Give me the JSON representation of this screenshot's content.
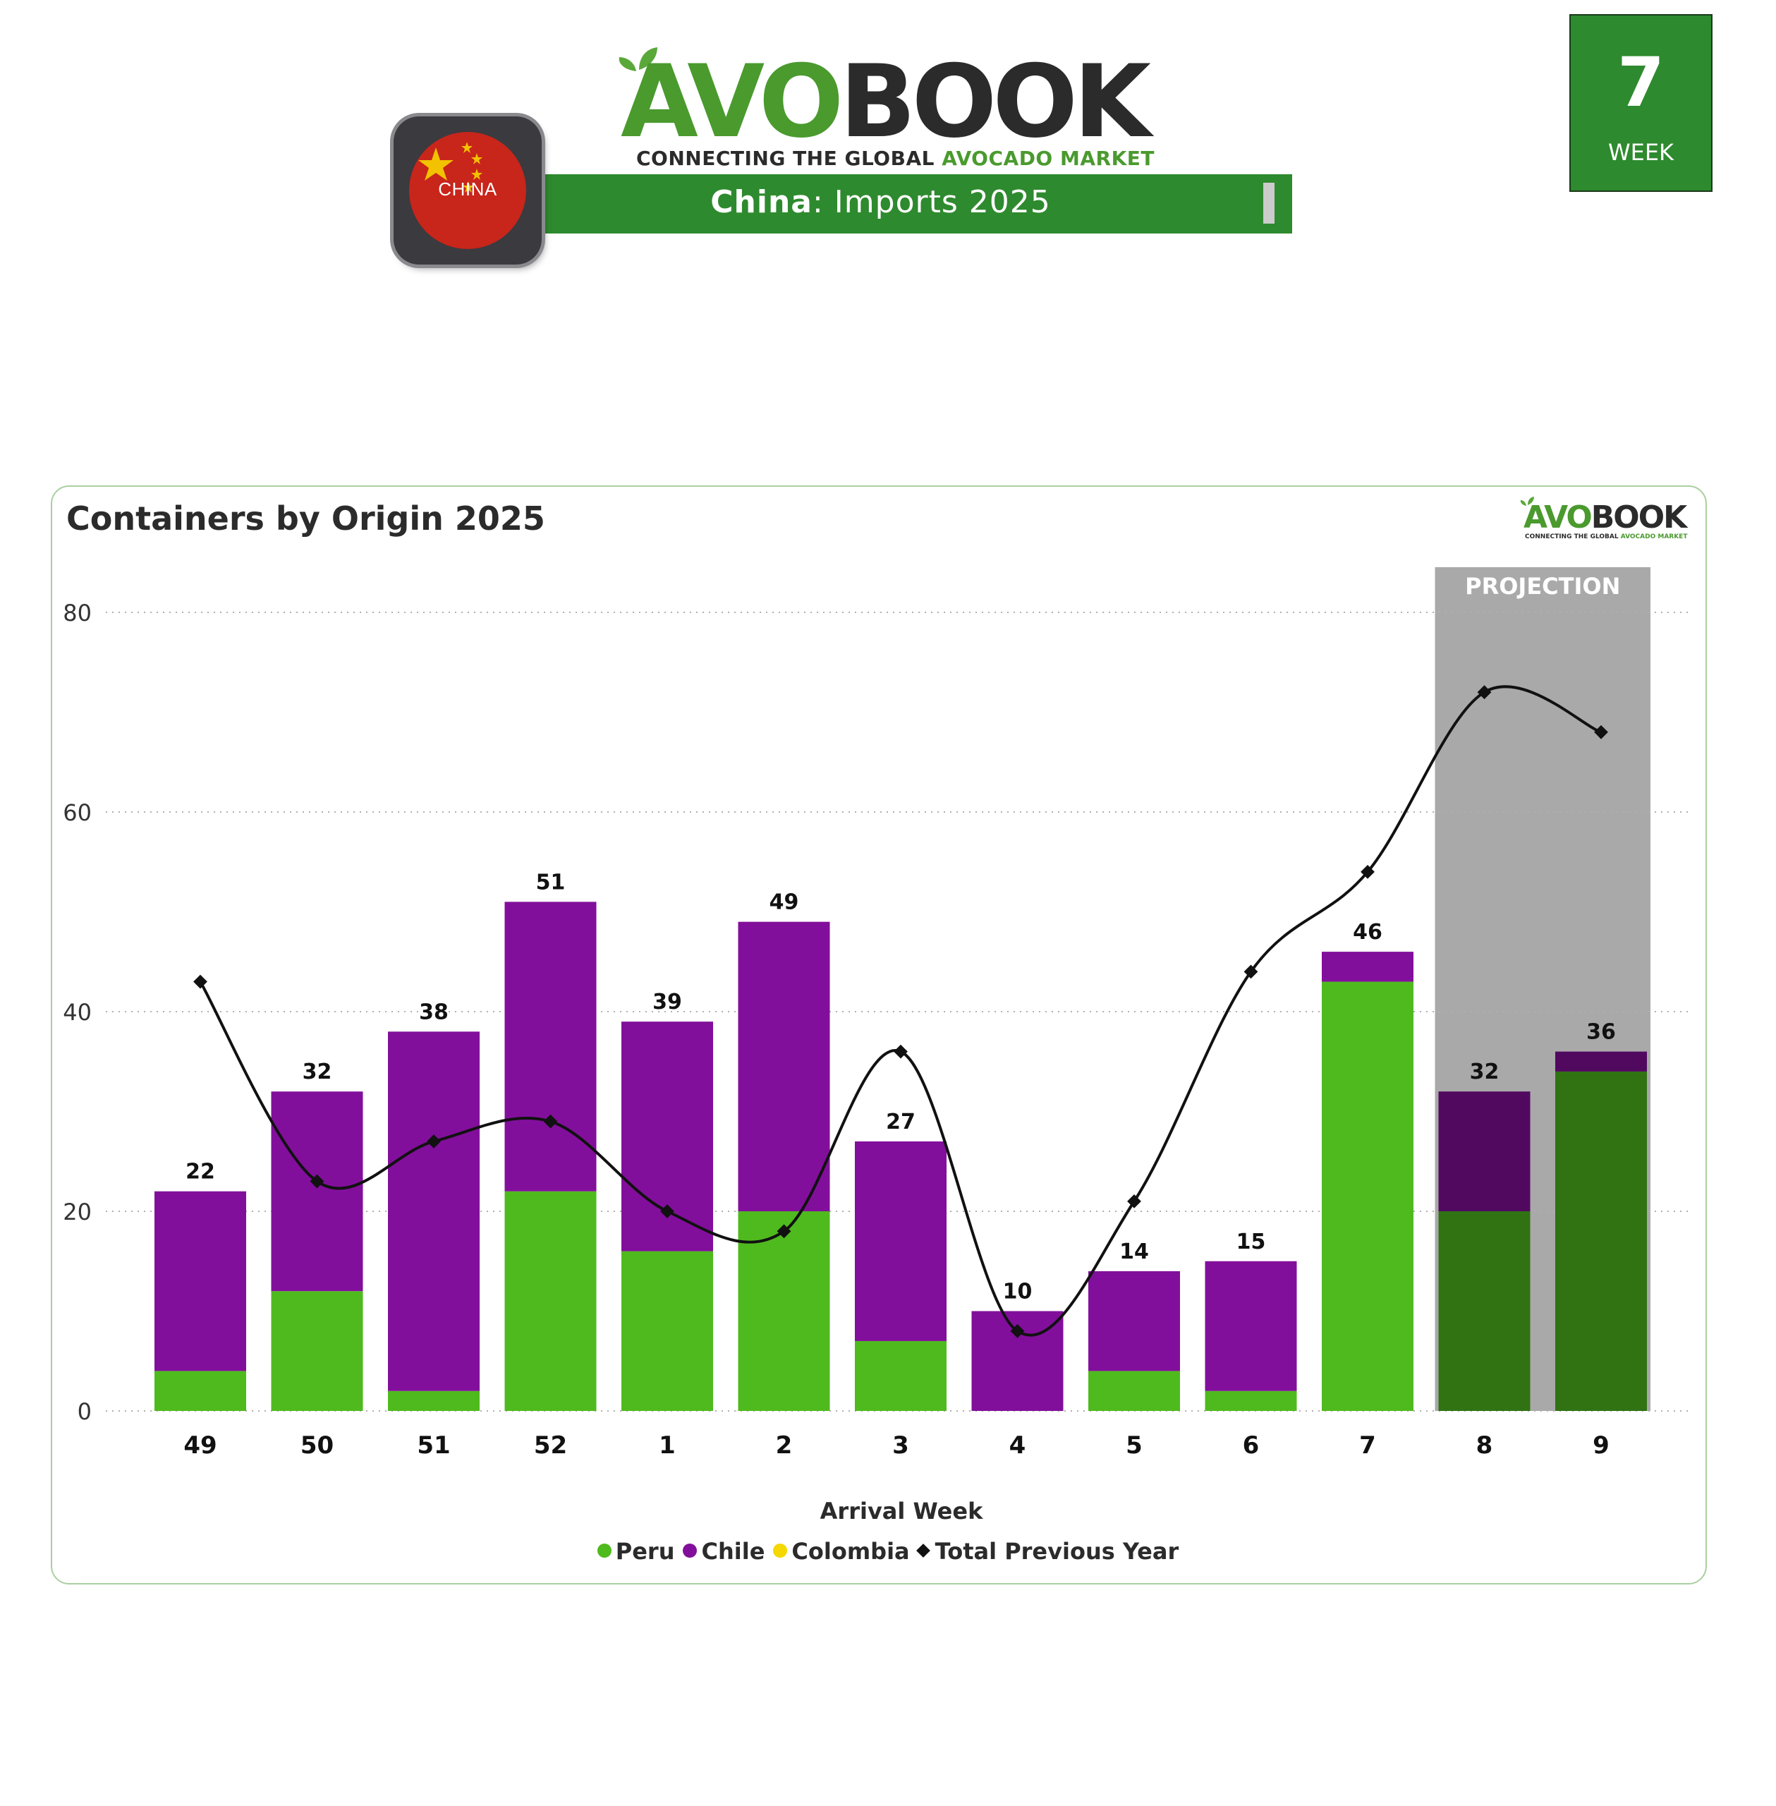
{
  "header": {
    "logo_avo": "AVO",
    "logo_book": "BOOK",
    "logo_tag_dark": "CONNECTING THE GLOBAL ",
    "logo_tag_green": "AVOCADO MARKET",
    "country_badge": "CHINA",
    "banner_country": "China",
    "banner_rest": ": Imports 2025",
    "week_number": "7",
    "week_label": "WEEK"
  },
  "chart_data": {
    "type": "bar",
    "stacked": true,
    "title": "Containers by Origin 2025",
    "xlabel": "Arrival Week",
    "ylabel": "",
    "ylim": [
      0,
      80
    ],
    "yticks": [
      0,
      20,
      40,
      60,
      80
    ],
    "categories": [
      "49",
      "50",
      "51",
      "52",
      "1",
      "2",
      "3",
      "4",
      "5",
      "6",
      "7",
      "8",
      "9"
    ],
    "series": [
      {
        "name": "Peru",
        "type": "bar",
        "color": "#4fba1e",
        "values": [
          4,
          12,
          2,
          22,
          16,
          20,
          7,
          0,
          4,
          2,
          43,
          20,
          34
        ]
      },
      {
        "name": "Chile",
        "type": "bar",
        "color": "#820f9b",
        "values": [
          18,
          20,
          36,
          29,
          23,
          29,
          20,
          10,
          10,
          13,
          3,
          12,
          2
        ]
      },
      {
        "name": "Colombia",
        "type": "bar",
        "color": "#f5d800",
        "values": [
          0,
          0,
          0,
          0,
          0,
          0,
          0,
          0,
          0,
          0,
          0,
          0,
          0
        ]
      },
      {
        "name": "Total Previous Year",
        "type": "line",
        "color": "#111111",
        "values": [
          43,
          23,
          27,
          29,
          20,
          18,
          36,
          8,
          21,
          44,
          54,
          72,
          68
        ]
      }
    ],
    "totals": [
      22,
      32,
      38,
      51,
      39,
      49,
      27,
      10,
      14,
      15,
      46,
      32,
      36
    ],
    "projection": {
      "label": "PROJECTION",
      "categories": [
        "8",
        "9"
      ]
    },
    "grid": true,
    "legend_position": "bottom"
  }
}
